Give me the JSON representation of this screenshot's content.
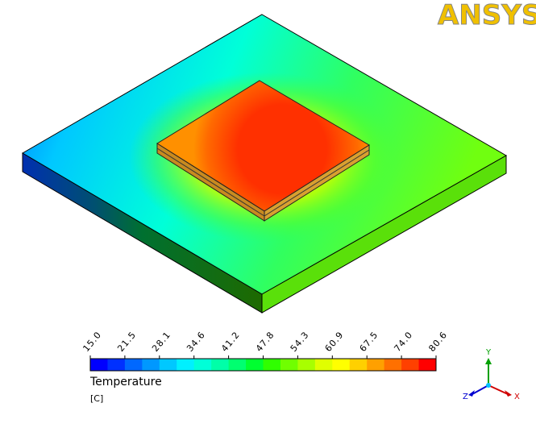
{
  "logo": "ANSYS",
  "legend": {
    "ticks": [
      "15.0",
      "21.5",
      "28.1",
      "34.6",
      "41.2",
      "47.8",
      "54.3",
      "60.9",
      "67.5",
      "74.0",
      "80.6"
    ],
    "title": "Temperature",
    "unit": "[C]"
  },
  "triad": {
    "y": "Y",
    "z": "Z",
    "x": "X"
  }
}
